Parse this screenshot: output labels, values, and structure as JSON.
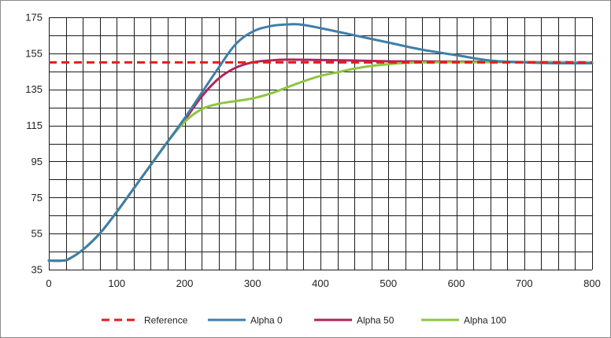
{
  "chart_data": {
    "type": "line",
    "title": "",
    "xlabel": "",
    "ylabel": "",
    "xlim": [
      0,
      800
    ],
    "ylim": [
      35,
      175
    ],
    "x_ticks": [
      0,
      100,
      200,
      300,
      400,
      500,
      600,
      700,
      800
    ],
    "y_ticks": [
      35,
      55,
      75,
      95,
      115,
      135,
      155,
      175
    ],
    "grid": true,
    "legend_position": "bottom",
    "series": [
      {
        "name": "Reference",
        "color": "#e31d1d",
        "style": "dashed",
        "x": [
          0,
          800
        ],
        "y": [
          150,
          150
        ]
      },
      {
        "name": "Alpha 0",
        "color": "#3f7fa8",
        "style": "solid",
        "x": [
          0,
          20,
          30,
          50,
          75,
          100,
          125,
          150,
          175,
          200,
          225,
          250,
          275,
          300,
          325,
          350,
          370,
          400,
          450,
          500,
          550,
          600,
          650,
          700,
          750,
          800
        ],
        "y": [
          40,
          40,
          41,
          46,
          55,
          67,
          80,
          93,
          106,
          119,
          133,
          147,
          160,
          167,
          170,
          171,
          171,
          169,
          165,
          161,
          157,
          154,
          151,
          150,
          149.5,
          149.5
        ]
      },
      {
        "name": "Alpha 50",
        "color": "#b0245c",
        "style": "solid",
        "x": [
          0,
          20,
          30,
          50,
          75,
          100,
          125,
          150,
          175,
          200,
          225,
          250,
          275,
          300,
          325,
          350,
          400,
          450,
          500,
          550,
          600,
          650,
          700,
          750,
          800
        ],
        "y": [
          40,
          40,
          41,
          46,
          55,
          67,
          80,
          93,
          106,
          118,
          131,
          141,
          147,
          150,
          151,
          151.5,
          151.3,
          151,
          150.6,
          150.5,
          150.4,
          150.3,
          150.2,
          150.1,
          150
        ]
      },
      {
        "name": "Alpha 100",
        "color": "#8dc63f",
        "style": "solid",
        "x": [
          0,
          20,
          30,
          50,
          75,
          100,
          125,
          150,
          175,
          200,
          225,
          250,
          275,
          300,
          325,
          350,
          375,
          400,
          425,
          450,
          475,
          500,
          525,
          550,
          600,
          650,
          700,
          750,
          800
        ],
        "y": [
          40,
          40,
          41,
          46,
          55,
          67,
          80,
          93,
          106,
          117,
          124,
          127,
          128.5,
          130,
          132.5,
          136,
          139.5,
          142.5,
          144.5,
          146.5,
          148,
          149,
          149.7,
          150,
          150.1,
          150.1,
          150.1,
          150,
          150
        ]
      }
    ]
  }
}
